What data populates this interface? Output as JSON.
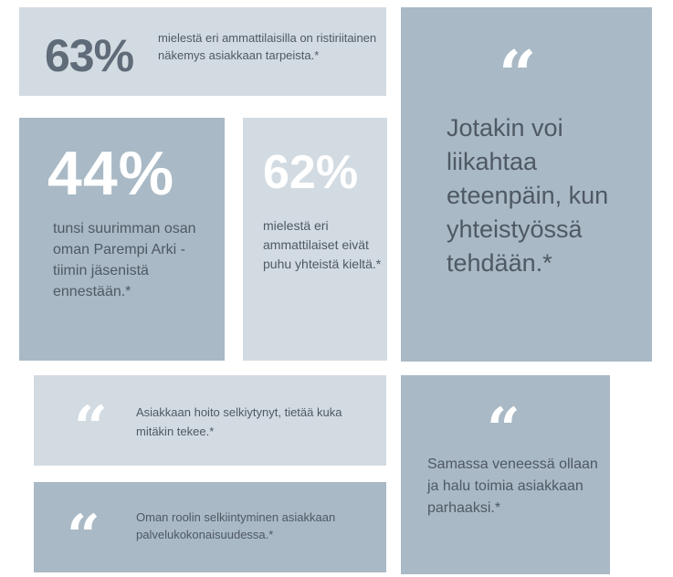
{
  "tiles": [
    {
      "stat": "63%",
      "text": "mielestä eri ammattilaisilla on ristiriitainen näkemys asiakkaan tarpeista.*"
    },
    {
      "stat": "44%",
      "text": "tunsi suurimman osan oman Parempi Arki -tiimin jäsenistä ennestään.*"
    },
    {
      "stat": "62%",
      "text": "mielestä eri ammattilaiset eivät puhu yhteistä kieltä.*"
    }
  ],
  "quotes": [
    {
      "mark": "“",
      "text": "Jotakin voi liikahtaa eteenpäin, kun yhteistyössä tehdään.*"
    },
    {
      "mark": "“",
      "text": "Asiakkaan hoito selkiytynyt, tietää kuka mitäkin tekee.*"
    },
    {
      "mark": "“",
      "text": "Samassa veneessä ollaan ja halu toimia asiakkaan parhaaksi.*"
    },
    {
      "mark": "“",
      "text": "Oman roolin selkiintyminen asiakkaan palvelukokonaisuudessa.*"
    }
  ],
  "colors": {
    "light_tile": "#d3dbe2",
    "mid_tile": "#a9b9c5",
    "text": "#4e5964"
  }
}
